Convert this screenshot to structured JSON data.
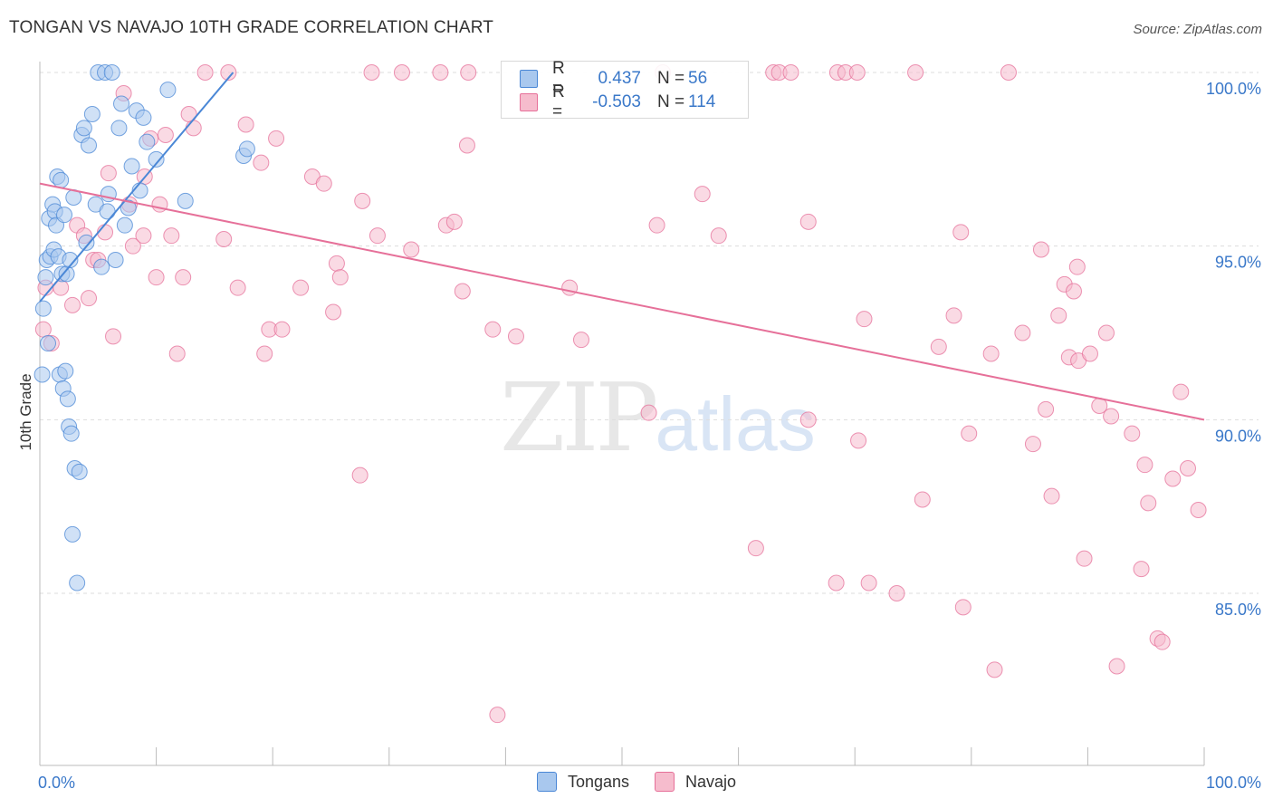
{
  "header": {
    "title": "TONGAN VS NAVAJO 10TH GRADE CORRELATION CHART",
    "source": "Source: ZipAtlas.com"
  },
  "watermark": {
    "zip": "ZIP",
    "atlas": "atlas"
  },
  "legend": {
    "rows": [
      {
        "label": "R =",
        "r_value": "0.437",
        "n_label": "N =",
        "n_value": "56",
        "color": "#a9c8ee",
        "border": "#4a87d6"
      },
      {
        "label": "R =",
        "r_value": "-0.503",
        "n_label": "N =",
        "n_value": "114",
        "color": "#f6bccd",
        "border": "#e67099"
      }
    ]
  },
  "bottom_legend": [
    {
      "name": "Tongans",
      "color": "#a9c8ee",
      "border": "#4a87d6"
    },
    {
      "name": "Navajo",
      "color": "#f6bccd",
      "border": "#e67099"
    }
  ],
  "chart_data": {
    "type": "scatter",
    "title": "TONGAN VS NAVAJO 10TH GRADE CORRELATION CHART",
    "xlabel": "",
    "ylabel": "10th Grade",
    "xlim": [
      0,
      100
    ],
    "ylim": [
      80.2,
      100.4
    ],
    "x_tick_labels": [
      "0.0%",
      "100.0%"
    ],
    "y_ticks": [
      85,
      90,
      95,
      100
    ],
    "y_tick_labels": [
      "85.0%",
      "90.0%",
      "95.0%",
      "100.0%"
    ],
    "grid": true,
    "series": [
      {
        "name": "Tongans",
        "color": "#4a87d6",
        "fill": "#a9c8ee",
        "trend": {
          "x": [
            0.0,
            16.6
          ],
          "y": [
            93.4,
            100.0
          ]
        },
        "points": [
          [
            0.2,
            91.3
          ],
          [
            0.3,
            93.2
          ],
          [
            0.5,
            94.1
          ],
          [
            0.6,
            94.6
          ],
          [
            0.7,
            92.2
          ],
          [
            0.8,
            95.8
          ],
          [
            0.9,
            94.7
          ],
          [
            1.1,
            96.2
          ],
          [
            1.2,
            94.9
          ],
          [
            1.3,
            96.0
          ],
          [
            1.4,
            95.6
          ],
          [
            1.5,
            97.0
          ],
          [
            1.6,
            94.7
          ],
          [
            1.7,
            91.3
          ],
          [
            1.8,
            96.9
          ],
          [
            1.9,
            94.2
          ],
          [
            2.0,
            90.9
          ],
          [
            2.1,
            95.9
          ],
          [
            2.2,
            91.4
          ],
          [
            2.3,
            94.2
          ],
          [
            2.4,
            90.6
          ],
          [
            2.5,
            89.8
          ],
          [
            2.6,
            94.6
          ],
          [
            2.7,
            89.6
          ],
          [
            2.8,
            86.7
          ],
          [
            2.9,
            96.4
          ],
          [
            3.0,
            88.6
          ],
          [
            3.2,
            85.3
          ],
          [
            3.4,
            88.5
          ],
          [
            3.6,
            98.2
          ],
          [
            3.8,
            98.4
          ],
          [
            4.0,
            95.1
          ],
          [
            4.2,
            97.9
          ],
          [
            4.5,
            98.8
          ],
          [
            4.8,
            96.2
          ],
          [
            5.0,
            100.0
          ],
          [
            5.3,
            94.4
          ],
          [
            5.6,
            100.0
          ],
          [
            5.9,
            96.5
          ],
          [
            6.2,
            100.0
          ],
          [
            6.5,
            94.6
          ],
          [
            6.8,
            98.4
          ],
          [
            7.0,
            99.1
          ],
          [
            7.3,
            95.6
          ],
          [
            7.6,
            96.1
          ],
          [
            7.9,
            97.3
          ],
          [
            8.3,
            98.9
          ],
          [
            8.6,
            96.6
          ],
          [
            8.9,
            98.7
          ],
          [
            9.2,
            98.0
          ],
          [
            10.0,
            97.5
          ],
          [
            11.0,
            99.5
          ],
          [
            12.5,
            96.3
          ],
          [
            17.5,
            97.6
          ],
          [
            17.8,
            97.8
          ],
          [
            5.8,
            96.0
          ]
        ]
      },
      {
        "name": "Navajo",
        "color": "#e67099",
        "fill": "#f6bccd",
        "trend": {
          "x": [
            0.0,
            100.0
          ],
          "y": [
            96.8,
            90.0
          ]
        },
        "points": [
          [
            0.3,
            92.6
          ],
          [
            0.5,
            93.8
          ],
          [
            1.0,
            92.2
          ],
          [
            1.8,
            93.8
          ],
          [
            2.8,
            93.3
          ],
          [
            3.2,
            95.6
          ],
          [
            3.8,
            95.3
          ],
          [
            4.2,
            93.5
          ],
          [
            4.6,
            94.6
          ],
          [
            5.0,
            94.6
          ],
          [
            5.6,
            95.4
          ],
          [
            5.9,
            97.1
          ],
          [
            6.3,
            92.4
          ],
          [
            7.2,
            99.4
          ],
          [
            7.7,
            96.2
          ],
          [
            8.0,
            95.0
          ],
          [
            8.9,
            95.3
          ],
          [
            9.0,
            97.0
          ],
          [
            9.5,
            98.1
          ],
          [
            10.0,
            94.1
          ],
          [
            10.3,
            96.2
          ],
          [
            10.8,
            98.2
          ],
          [
            11.3,
            95.3
          ],
          [
            11.8,
            91.9
          ],
          [
            12.3,
            94.1
          ],
          [
            12.8,
            98.8
          ],
          [
            13.2,
            98.4
          ],
          [
            14.2,
            100.0
          ],
          [
            15.8,
            95.2
          ],
          [
            16.2,
            100.0
          ],
          [
            17.0,
            93.8
          ],
          [
            17.7,
            98.5
          ],
          [
            19.0,
            97.4
          ],
          [
            19.3,
            91.9
          ],
          [
            19.7,
            92.6
          ],
          [
            20.3,
            98.1
          ],
          [
            20.8,
            92.6
          ],
          [
            22.4,
            93.8
          ],
          [
            23.4,
            97.0
          ],
          [
            24.4,
            96.8
          ],
          [
            25.2,
            93.1
          ],
          [
            25.5,
            94.5
          ],
          [
            25.8,
            94.1
          ],
          [
            27.5,
            88.4
          ],
          [
            27.7,
            96.3
          ],
          [
            28.5,
            100.0
          ],
          [
            29.0,
            95.3
          ],
          [
            31.1,
            100.0
          ],
          [
            31.9,
            94.9
          ],
          [
            34.4,
            100.0
          ],
          [
            34.9,
            95.6
          ],
          [
            35.6,
            95.7
          ],
          [
            36.3,
            93.7
          ],
          [
            36.7,
            97.9
          ],
          [
            36.8,
            100.0
          ],
          [
            38.9,
            92.6
          ],
          [
            39.3,
            81.5
          ],
          [
            40.9,
            92.4
          ],
          [
            45.5,
            93.8
          ],
          [
            46.5,
            92.3
          ],
          [
            52.3,
            90.2
          ],
          [
            53.0,
            95.6
          ],
          [
            53.5,
            100.0
          ],
          [
            56.9,
            96.5
          ],
          [
            58.3,
            95.3
          ],
          [
            61.5,
            86.3
          ],
          [
            63.0,
            100.0
          ],
          [
            63.5,
            100.0
          ],
          [
            64.5,
            100.0
          ],
          [
            66.0,
            95.7
          ],
          [
            66.0,
            90.0
          ],
          [
            68.4,
            85.3
          ],
          [
            68.5,
            100.0
          ],
          [
            69.2,
            100.0
          ],
          [
            70.2,
            100.0
          ],
          [
            70.3,
            89.4
          ],
          [
            70.8,
            92.9
          ],
          [
            71.2,
            85.3
          ],
          [
            73.6,
            85.0
          ],
          [
            75.2,
            100.0
          ],
          [
            75.8,
            87.7
          ],
          [
            77.2,
            92.1
          ],
          [
            78.5,
            93.0
          ],
          [
            79.1,
            95.4
          ],
          [
            79.3,
            84.6
          ],
          [
            79.8,
            89.6
          ],
          [
            81.7,
            91.9
          ],
          [
            82.0,
            82.8
          ],
          [
            83.2,
            100.0
          ],
          [
            84.4,
            92.5
          ],
          [
            85.3,
            89.3
          ],
          [
            86.0,
            94.9
          ],
          [
            86.4,
            90.3
          ],
          [
            86.9,
            87.8
          ],
          [
            87.5,
            93.0
          ],
          [
            88.0,
            93.9
          ],
          [
            88.4,
            91.8
          ],
          [
            88.8,
            93.7
          ],
          [
            89.1,
            94.4
          ],
          [
            89.2,
            91.7
          ],
          [
            89.7,
            86.0
          ],
          [
            90.2,
            91.9
          ],
          [
            91.0,
            90.4
          ],
          [
            91.6,
            92.5
          ],
          [
            92.0,
            90.1
          ],
          [
            92.5,
            82.9
          ],
          [
            93.8,
            89.6
          ],
          [
            94.6,
            85.7
          ],
          [
            94.9,
            88.7
          ],
          [
            95.2,
            87.6
          ],
          [
            96.0,
            83.7
          ],
          [
            96.4,
            83.6
          ],
          [
            97.3,
            88.3
          ],
          [
            98.0,
            90.8
          ],
          [
            98.6,
            88.6
          ],
          [
            99.5,
            87.4
          ]
        ]
      }
    ]
  }
}
